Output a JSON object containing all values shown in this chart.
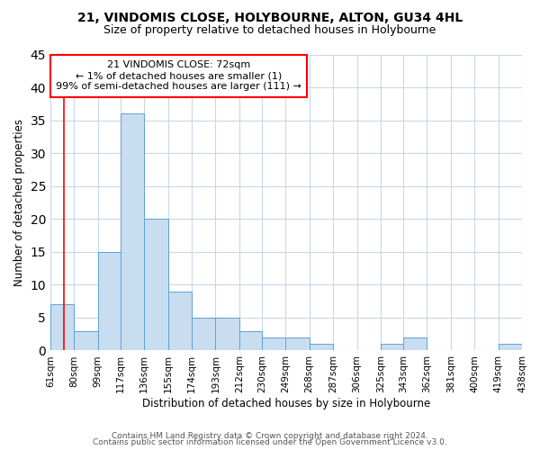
{
  "title": "21, VINDOMIS CLOSE, HOLYBOURNE, ALTON, GU34 4HL",
  "subtitle": "Size of property relative to detached houses in Holybourne",
  "xlabel": "Distribution of detached houses by size in Holybourne",
  "ylabel": "Number of detached properties",
  "bin_edges": [
    61,
    80,
    99,
    117,
    136,
    155,
    174,
    193,
    212,
    230,
    249,
    268,
    287,
    306,
    325,
    343,
    362,
    381,
    400,
    419,
    438
  ],
  "bin_labels": [
    "61sqm",
    "80sqm",
    "99sqm",
    "117sqm",
    "136sqm",
    "155sqm",
    "174sqm",
    "193sqm",
    "212sqm",
    "230sqm",
    "249sqm",
    "268sqm",
    "287sqm",
    "306sqm",
    "325sqm",
    "343sqm",
    "362sqm",
    "381sqm",
    "400sqm",
    "419sqm",
    "438sqm"
  ],
  "counts": [
    7,
    3,
    15,
    36,
    20,
    9,
    5,
    5,
    3,
    2,
    2,
    1,
    0,
    0,
    1,
    2,
    0,
    0,
    0,
    1
  ],
  "bar_facecolor": "#c9ddf0",
  "bar_edgecolor": "#5ba3d9",
  "ylim": [
    0,
    45
  ],
  "yticks": [
    0,
    5,
    10,
    15,
    20,
    25,
    30,
    35,
    40,
    45
  ],
  "annotation_text_line1": "21 VINDOMIS CLOSE: 72sqm",
  "annotation_text_line2": "← 1% of detached houses are smaller (1)",
  "annotation_text_line3": "99% of semi-detached houses are larger (111) →",
  "property_line_x": 72,
  "background_color": "#ffffff",
  "grid_color": "#c8d8e8",
  "footer_line1": "Contains HM Land Registry data © Crown copyright and database right 2024.",
  "footer_line2": "Contains public sector information licensed under the Open Government Licence v3.0.",
  "title_fontsize": 10,
  "subtitle_fontsize": 9,
  "axis_label_fontsize": 8.5,
  "tick_fontsize": 7.5,
  "annot_fontsize": 8,
  "footer_fontsize": 6.5
}
